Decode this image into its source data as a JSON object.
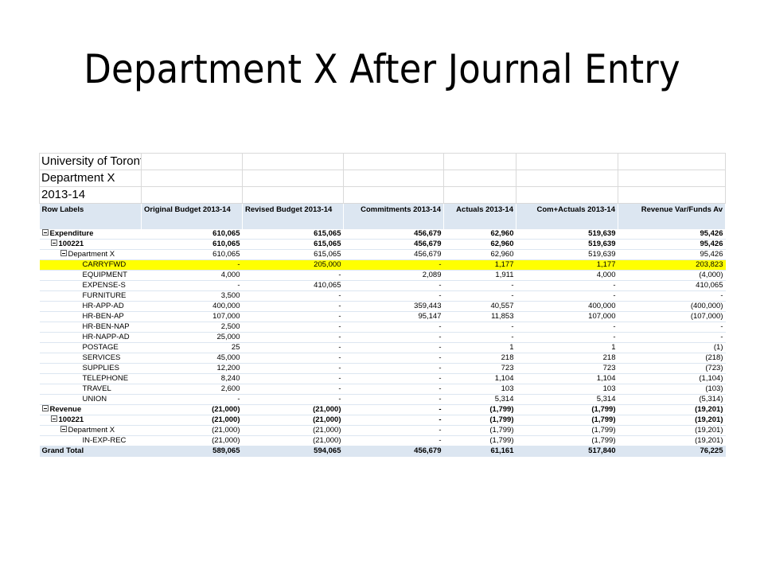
{
  "slide": {
    "title": "Department X After Journal Entry"
  },
  "report": {
    "header_lines": [
      "University of Toronto Scarborough",
      "Department X",
      "2013-14"
    ],
    "columns": [
      "Row Labels",
      "Original Budget 2013-14",
      "Revised Budget 2013-14",
      "Commitments 2013-14",
      "Actuals 2013-14",
      "Com+Actuals 2013-14",
      "Revenue Var/Funds Av"
    ],
    "rows": [
      {
        "label": "Expenditure",
        "level": 0,
        "toggle": true,
        "bold": true,
        "values": [
          "610,065",
          "615,065",
          "456,679",
          "62,960",
          "519,639",
          "95,426"
        ]
      },
      {
        "label": "100221",
        "level": 1,
        "toggle": true,
        "bold": true,
        "values": [
          "610,065",
          "615,065",
          "456,679",
          "62,960",
          "519,639",
          "95,426"
        ]
      },
      {
        "label": "Department X",
        "level": 2,
        "toggle": true,
        "bold": false,
        "values": [
          "610,065",
          "615,065",
          "456,679",
          "62,960",
          "519,639",
          "95,426"
        ]
      },
      {
        "label": "CARRYFWD",
        "level": 3,
        "toggle": false,
        "bold": false,
        "highlight": true,
        "values": [
          "-",
          "205,000",
          "-",
          "1,177",
          "1,177",
          "203,823"
        ]
      },
      {
        "label": "EQUIPMENT",
        "level": 3,
        "values": [
          "4,000",
          "-",
          "2,089",
          "1,911",
          "4,000",
          "(4,000)"
        ]
      },
      {
        "label": "EXPENSE-S",
        "level": 3,
        "values": [
          "-",
          "410,065",
          "-",
          "-",
          "-",
          "410,065"
        ]
      },
      {
        "label": "FURNITURE",
        "level": 3,
        "values": [
          "3,500",
          "-",
          "-",
          "-",
          "-",
          "-"
        ]
      },
      {
        "label": "HR-APP-AD",
        "level": 3,
        "values": [
          "400,000",
          "-",
          "359,443",
          "40,557",
          "400,000",
          "(400,000)"
        ]
      },
      {
        "label": "HR-BEN-AP",
        "level": 3,
        "values": [
          "107,000",
          "-",
          "95,147",
          "11,853",
          "107,000",
          "(107,000)"
        ]
      },
      {
        "label": "HR-BEN-NAP",
        "level": 3,
        "values": [
          "2,500",
          "-",
          "-",
          "-",
          "-",
          "-"
        ]
      },
      {
        "label": "HR-NAPP-AD",
        "level": 3,
        "values": [
          "25,000",
          "-",
          "-",
          "-",
          "-",
          "-"
        ]
      },
      {
        "label": "POSTAGE",
        "level": 3,
        "values": [
          "25",
          "-",
          "-",
          "1",
          "1",
          "(1)"
        ]
      },
      {
        "label": "SERVICES",
        "level": 3,
        "values": [
          "45,000",
          "-",
          "-",
          "218",
          "218",
          "(218)"
        ]
      },
      {
        "label": "SUPPLIES",
        "level": 3,
        "values": [
          "12,200",
          "-",
          "-",
          "723",
          "723",
          "(723)"
        ]
      },
      {
        "label": "TELEPHONE",
        "level": 3,
        "values": [
          "8,240",
          "-",
          "-",
          "1,104",
          "1,104",
          "(1,104)"
        ]
      },
      {
        "label": "TRAVEL",
        "level": 3,
        "values": [
          "2,600",
          "-",
          "-",
          "103",
          "103",
          "(103)"
        ]
      },
      {
        "label": "UNION",
        "level": 3,
        "values": [
          "-",
          "-",
          "-",
          "5,314",
          "5,314",
          "(5,314)"
        ]
      },
      {
        "label": "Revenue",
        "level": 0,
        "toggle": true,
        "bold": true,
        "sep": true,
        "values": [
          "(21,000)",
          "(21,000)",
          "-",
          "(1,799)",
          "(1,799)",
          "(19,201)"
        ]
      },
      {
        "label": "100221",
        "level": 1,
        "toggle": true,
        "bold": true,
        "values": [
          "(21,000)",
          "(21,000)",
          "-",
          "(1,799)",
          "(1,799)",
          "(19,201)"
        ]
      },
      {
        "label": "Department X",
        "level": 2,
        "toggle": true,
        "bold": false,
        "values": [
          "(21,000)",
          "(21,000)",
          "-",
          "(1,799)",
          "(1,799)",
          "(19,201)"
        ]
      },
      {
        "label": "IN-EXP-REC",
        "level": 3,
        "values": [
          "(21,000)",
          "(21,000)",
          "-",
          "(1,799)",
          "(1,799)",
          "(19,201)"
        ]
      }
    ],
    "grand_total": {
      "label": "Grand Total",
      "values": [
        "589,065",
        "594,065",
        "456,679",
        "61,161",
        "517,840",
        "76,225"
      ]
    }
  },
  "colors": {
    "header_fill": "#dce6f1",
    "highlight": "#ffff00",
    "gridline": "#d9d9d9"
  }
}
